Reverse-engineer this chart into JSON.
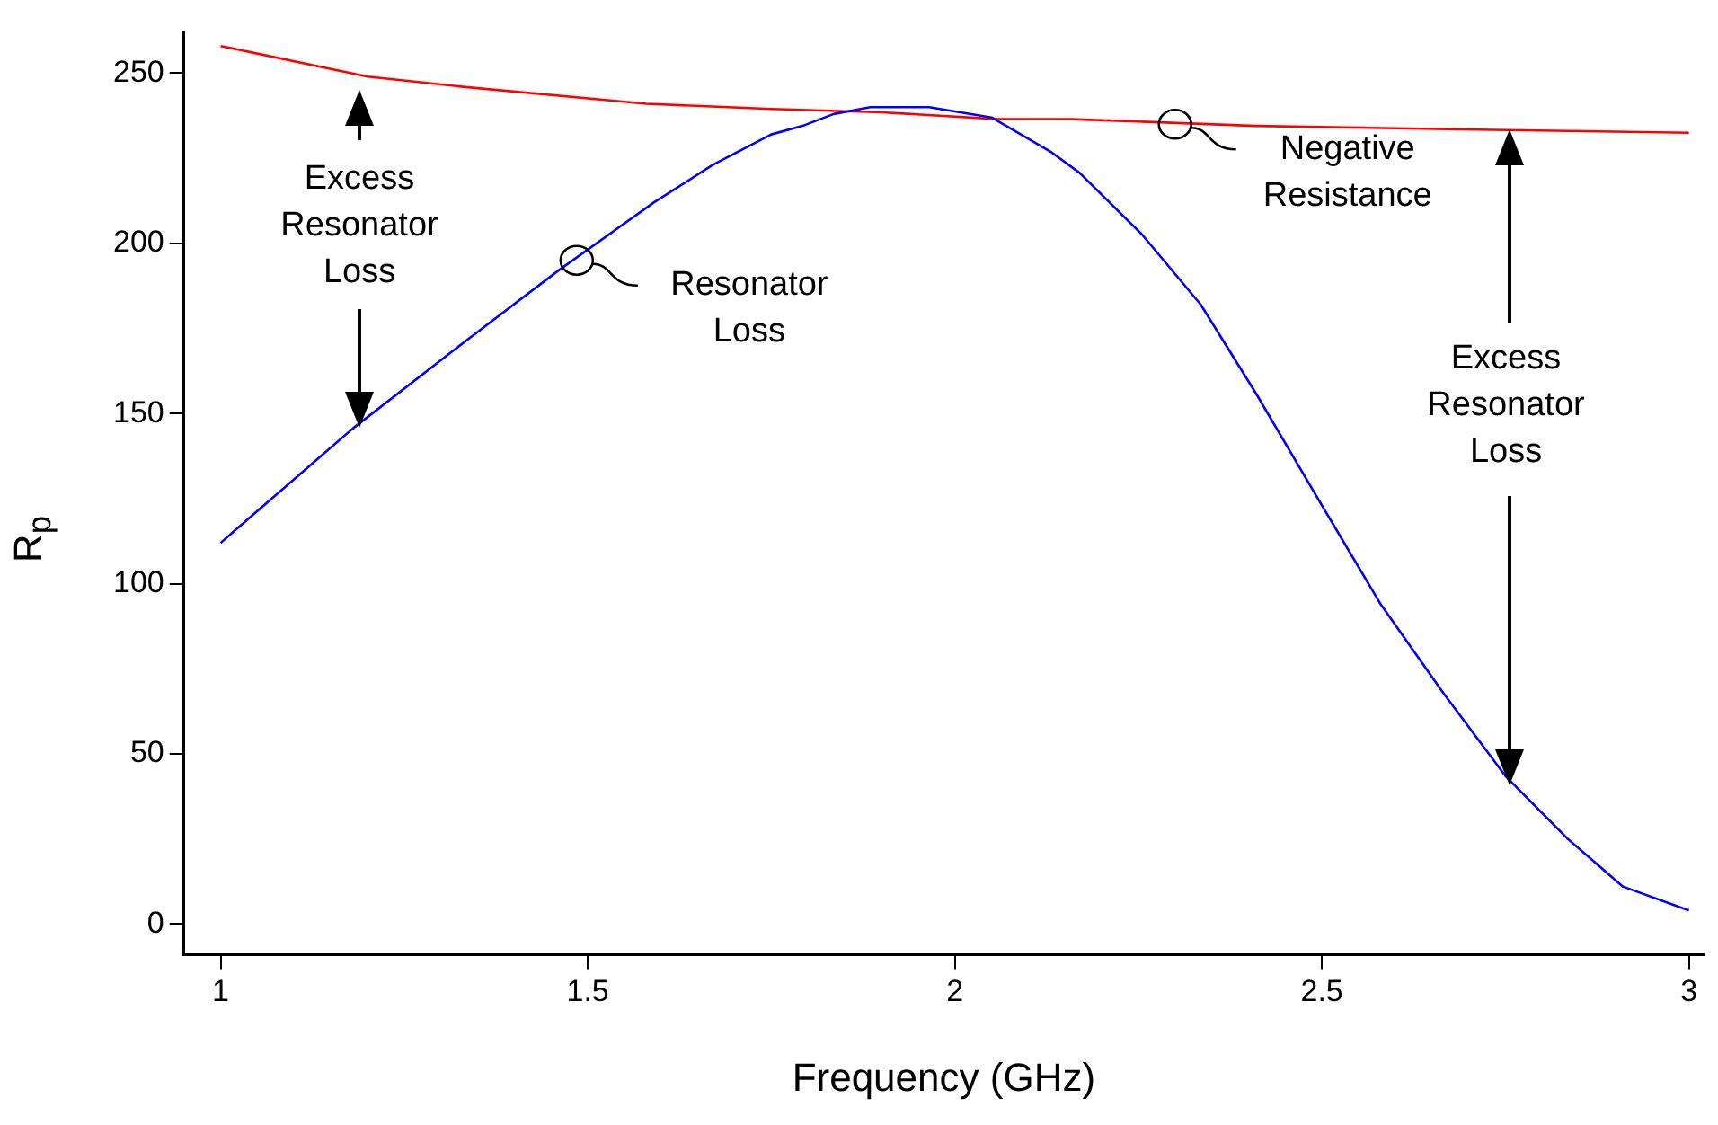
{
  "chart_data": {
    "type": "line",
    "xlabel": "Frequency (GHz)",
    "ylabel": "R$_{p}$",
    "xlim": [
      0.95,
      3.02
    ],
    "xticks": [
      1,
      1.5,
      2,
      2.5,
      3
    ],
    "ylim": [
      -9,
      262
    ],
    "yticks": [
      0,
      50,
      100,
      150,
      200,
      250
    ],
    "grid": false,
    "legend": false,
    "marker": "none",
    "line_style": "solid",
    "series": [
      {
        "color": "#0000ff",
        "x": [
          1,
          1.18,
          1.335,
          1.46,
          1.59,
          1.67,
          1.75,
          1.795,
          1.835,
          1.885,
          1.965,
          2.05,
          2.13,
          2.17,
          2.255,
          2.335,
          2.41,
          2.5,
          2.58,
          2.665,
          2.75,
          2.835,
          2.91,
          3
        ],
        "values": [
          112,
          145.6,
          171.5,
          192,
          212,
          223,
          232,
          234.7,
          238,
          240,
          240,
          237,
          227,
          220.7,
          202.6,
          182,
          156,
          123,
          94,
          68,
          43.5,
          25,
          11,
          4
        ]
      },
      {
        "color": "#ff0000",
        "x": [
          1,
          1.2,
          1.33,
          1.58,
          1.75,
          1.9,
          2.06,
          2.16,
          2.41,
          2.69,
          3
        ],
        "values": [
          258,
          249,
          246,
          241,
          239.5,
          238.5,
          236.5,
          236.5,
          234.5,
          233.5,
          232.5
        ]
      }
    ],
    "annotations": [
      "Excess Resonator Loss",
      {
        "text": "Resonator Loss",
        "x": 1.485,
        "y": 195
      },
      {
        "text": "Negative Resistance",
        "x": 2.3,
        "y": 235
      },
      "Excess Resonator Loss"
    ]
  }
}
